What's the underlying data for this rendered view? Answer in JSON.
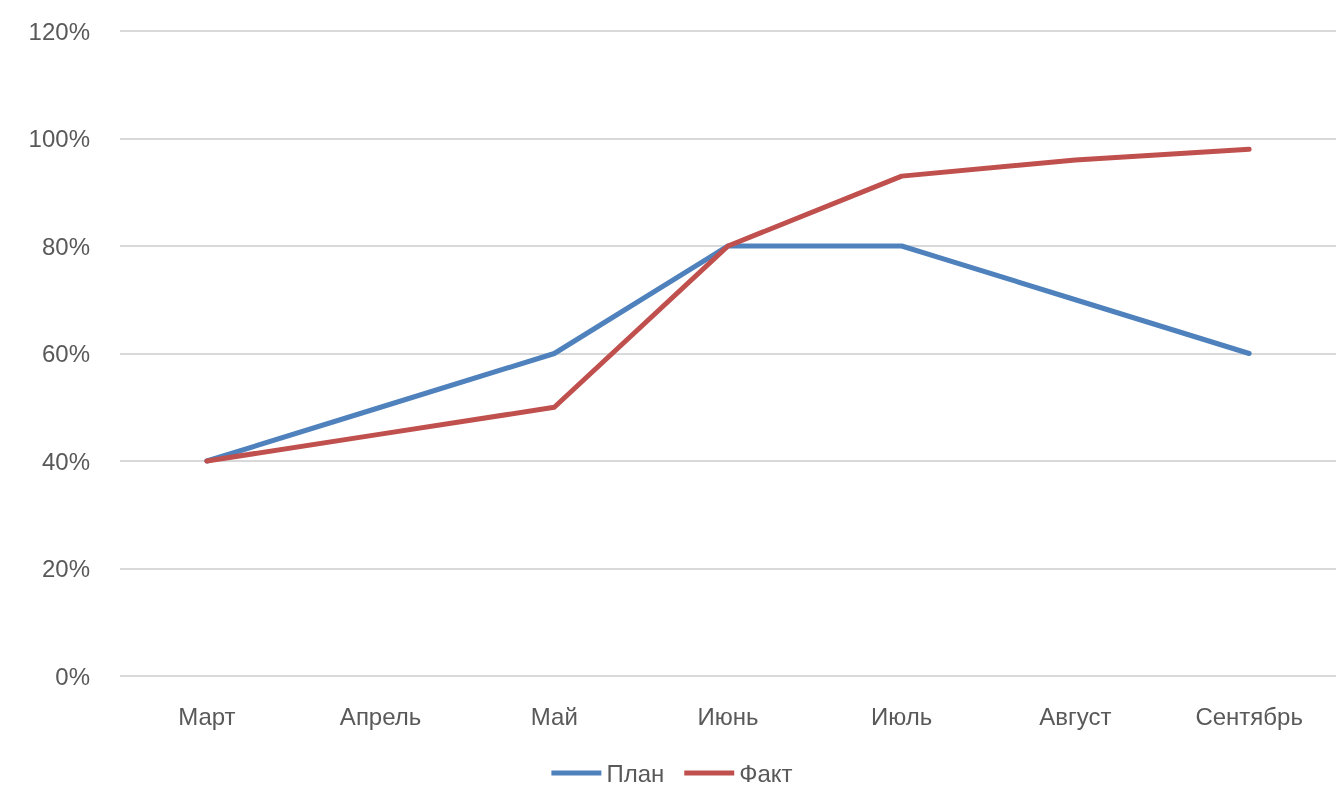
{
  "chart_data": {
    "type": "line",
    "categories": [
      "Март",
      "Апрель",
      "Май",
      "Июнь",
      "Июль",
      "Август",
      "Сентябрь"
    ],
    "series": [
      {
        "name": "План",
        "color": "#4f81bd",
        "values": [
          40,
          50,
          60,
          80,
          80,
          70,
          60
        ]
      },
      {
        "name": "Факт",
        "color": "#c0504d",
        "values": [
          40,
          45,
          50,
          80,
          93,
          96,
          98
        ]
      }
    ],
    "ylim": [
      0,
      120
    ],
    "yticks": [
      {
        "value": 0,
        "label": "0%"
      },
      {
        "value": 20,
        "label": "20%"
      },
      {
        "value": 40,
        "label": "40%"
      },
      {
        "value": 60,
        "label": "60%"
      },
      {
        "value": 80,
        "label": "80%"
      },
      {
        "value": 100,
        "label": "100%"
      },
      {
        "value": 120,
        "label": "120%"
      }
    ],
    "grid": "y",
    "legend": "bottom",
    "marker": "none",
    "line_style": "solid"
  }
}
